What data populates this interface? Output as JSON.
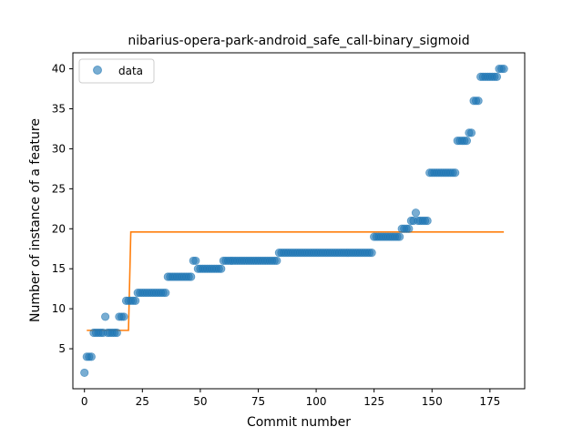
{
  "chart_data": {
    "type": "scatter",
    "title": "nibarius-opera-park-android_safe_call-binary_sigmoid",
    "xlabel": "Commit number",
    "ylabel": "Number of instance of a feature",
    "xlim": [
      -5,
      190
    ],
    "ylim": [
      0,
      42
    ],
    "xticks": [
      0,
      25,
      50,
      75,
      100,
      125,
      150,
      175
    ],
    "yticks": [
      5,
      10,
      15,
      20,
      25,
      30,
      35,
      40
    ],
    "legend": {
      "position": "top-left",
      "entries": [
        "data"
      ]
    },
    "colors": {
      "data": "#1f77b4",
      "fit": "#ff7f0e"
    },
    "series": [
      {
        "name": "data",
        "kind": "scatter",
        "points": [
          [
            0,
            2
          ],
          [
            1,
            4
          ],
          [
            2,
            4
          ],
          [
            3,
            4
          ],
          [
            4,
            7
          ],
          [
            5,
            7
          ],
          [
            6,
            7
          ],
          [
            7,
            7
          ],
          [
            8,
            7
          ],
          [
            9,
            9
          ],
          [
            10,
            7
          ],
          [
            11,
            7
          ],
          [
            12,
            7
          ],
          [
            13,
            7
          ],
          [
            14,
            7
          ],
          [
            15,
            9
          ],
          [
            16,
            9
          ],
          [
            17,
            9
          ],
          [
            18,
            11
          ],
          [
            19,
            11
          ],
          [
            20,
            11
          ],
          [
            21,
            11
          ],
          [
            22,
            11
          ],
          [
            23,
            12
          ],
          [
            24,
            12
          ],
          [
            25,
            12
          ],
          [
            26,
            12
          ],
          [
            27,
            12
          ],
          [
            28,
            12
          ],
          [
            29,
            12
          ],
          [
            30,
            12
          ],
          [
            31,
            12
          ],
          [
            32,
            12
          ],
          [
            33,
            12
          ],
          [
            34,
            12
          ],
          [
            35,
            12
          ],
          [
            36,
            14
          ],
          [
            37,
            14
          ],
          [
            38,
            14
          ],
          [
            39,
            14
          ],
          [
            40,
            14
          ],
          [
            41,
            14
          ],
          [
            42,
            14
          ],
          [
            43,
            14
          ],
          [
            44,
            14
          ],
          [
            45,
            14
          ],
          [
            46,
            14
          ],
          [
            47,
            16
          ],
          [
            48,
            16
          ],
          [
            49,
            15
          ],
          [
            50,
            15
          ],
          [
            51,
            15
          ],
          [
            52,
            15
          ],
          [
            53,
            15
          ],
          [
            54,
            15
          ],
          [
            55,
            15
          ],
          [
            56,
            15
          ],
          [
            57,
            15
          ],
          [
            58,
            15
          ],
          [
            59,
            15
          ],
          [
            60,
            16
          ],
          [
            61,
            16
          ],
          [
            62,
            16
          ],
          [
            63,
            16
          ],
          [
            64,
            16
          ],
          [
            65,
            16
          ],
          [
            66,
            16
          ],
          [
            67,
            16
          ],
          [
            68,
            16
          ],
          [
            69,
            16
          ],
          [
            70,
            16
          ],
          [
            71,
            16
          ],
          [
            72,
            16
          ],
          [
            73,
            16
          ],
          [
            74,
            16
          ],
          [
            75,
            16
          ],
          [
            76,
            16
          ],
          [
            77,
            16
          ],
          [
            78,
            16
          ],
          [
            79,
            16
          ],
          [
            80,
            16
          ],
          [
            81,
            16
          ],
          [
            82,
            16
          ],
          [
            83,
            16
          ],
          [
            84,
            17
          ],
          [
            85,
            17
          ],
          [
            86,
            17
          ],
          [
            87,
            17
          ],
          [
            88,
            17
          ],
          [
            89,
            17
          ],
          [
            90,
            17
          ],
          [
            91,
            17
          ],
          [
            92,
            17
          ],
          [
            93,
            17
          ],
          [
            94,
            17
          ],
          [
            95,
            17
          ],
          [
            96,
            17
          ],
          [
            97,
            17
          ],
          [
            98,
            17
          ],
          [
            99,
            17
          ],
          [
            100,
            17
          ],
          [
            101,
            17
          ],
          [
            102,
            17
          ],
          [
            103,
            17
          ],
          [
            104,
            17
          ],
          [
            105,
            17
          ],
          [
            106,
            17
          ],
          [
            107,
            17
          ],
          [
            108,
            17
          ],
          [
            109,
            17
          ],
          [
            110,
            17
          ],
          [
            111,
            17
          ],
          [
            112,
            17
          ],
          [
            113,
            17
          ],
          [
            114,
            17
          ],
          [
            115,
            17
          ],
          [
            116,
            17
          ],
          [
            117,
            17
          ],
          [
            118,
            17
          ],
          [
            119,
            17
          ],
          [
            120,
            17
          ],
          [
            121,
            17
          ],
          [
            122,
            17
          ],
          [
            123,
            17
          ],
          [
            124,
            17
          ],
          [
            125,
            19
          ],
          [
            126,
            19
          ],
          [
            127,
            19
          ],
          [
            128,
            19
          ],
          [
            129,
            19
          ],
          [
            130,
            19
          ],
          [
            131,
            19
          ],
          [
            132,
            19
          ],
          [
            133,
            19
          ],
          [
            134,
            19
          ],
          [
            135,
            19
          ],
          [
            136,
            19
          ],
          [
            137,
            20
          ],
          [
            138,
            20
          ],
          [
            139,
            20
          ],
          [
            140,
            20
          ],
          [
            141,
            21
          ],
          [
            142,
            21
          ],
          [
            143,
            22
          ],
          [
            144,
            21
          ],
          [
            145,
            21
          ],
          [
            146,
            21
          ],
          [
            147,
            21
          ],
          [
            148,
            21
          ],
          [
            149,
            27
          ],
          [
            150,
            27
          ],
          [
            151,
            27
          ],
          [
            152,
            27
          ],
          [
            153,
            27
          ],
          [
            154,
            27
          ],
          [
            155,
            27
          ],
          [
            156,
            27
          ],
          [
            157,
            27
          ],
          [
            158,
            27
          ],
          [
            159,
            27
          ],
          [
            160,
            27
          ],
          [
            161,
            31
          ],
          [
            162,
            31
          ],
          [
            163,
            31
          ],
          [
            164,
            31
          ],
          [
            165,
            31
          ],
          [
            166,
            32
          ],
          [
            167,
            32
          ],
          [
            168,
            36
          ],
          [
            169,
            36
          ],
          [
            170,
            36
          ],
          [
            171,
            39
          ],
          [
            172,
            39
          ],
          [
            173,
            39
          ],
          [
            174,
            39
          ],
          [
            175,
            39
          ],
          [
            176,
            39
          ],
          [
            177,
            39
          ],
          [
            178,
            39
          ],
          [
            179,
            40
          ],
          [
            180,
            40
          ],
          [
            181,
            40
          ]
        ]
      },
      {
        "kind": "line",
        "points": [
          [
            1,
            7.3
          ],
          [
            19,
            7.3
          ],
          [
            20,
            19.6
          ],
          [
            181,
            19.6
          ]
        ]
      }
    ]
  }
}
